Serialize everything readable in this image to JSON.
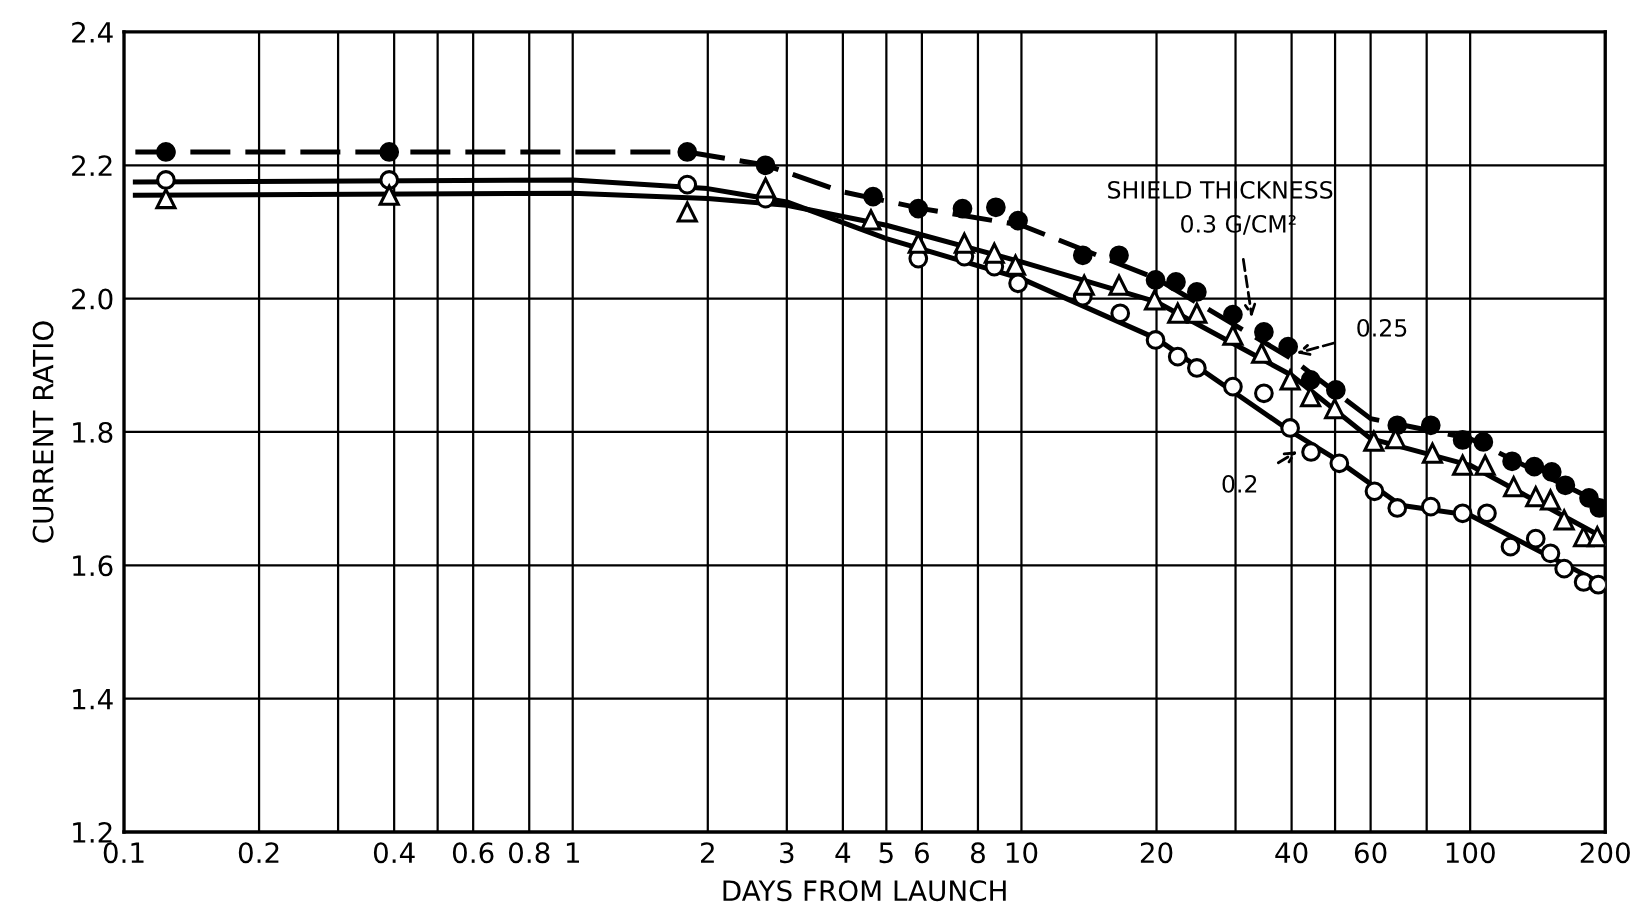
{
  "chart_data": {
    "type": "scatter",
    "xlabel": "DAYS FROM LAUNCH",
    "ylabel": "CURRENT RATIO",
    "log": "x",
    "grid": true,
    "legend": false,
    "xlim": [
      0.1,
      200
    ],
    "ylim": [
      1.2,
      2.4
    ],
    "xticks": [
      0.1,
      0.2,
      {
        "value": 0.3,
        "label": null
      },
      0.4,
      {
        "value": 0.5,
        "label": null
      },
      0.6,
      0.8,
      1,
      2,
      3,
      4,
      5,
      6,
      8,
      10,
      20,
      {
        "value": 30,
        "label": null
      },
      40,
      {
        "value": 50,
        "label": null
      },
      60,
      {
        "value": 80,
        "label": null
      },
      100,
      200
    ],
    "yticks": [
      1.2,
      1.4,
      1.6,
      1.8,
      {
        "value": 2.0,
        "label": "2.0"
      },
      2.2,
      2.4
    ],
    "series": [
      {
        "color": "#000000",
        "marker": "circle",
        "x": [
          0.124,
          0.39,
          1.8,
          2.69,
          4.67,
          5.89,
          7.39,
          8.77,
          9.83,
          13.7,
          16.5,
          19.9,
          22.1,
          24.6,
          29.6,
          34.7,
          39.3,
          44.1,
          50.2,
          68.8,
          81.7,
          96.2,
          107,
          124,
          139,
          152,
          163,
          184,
          194
        ],
        "values": [
          2.22,
          2.22,
          2.22,
          2.2,
          2.153,
          2.135,
          2.135,
          2.137,
          2.117,
          2.065,
          2.065,
          2.028,
          2.025,
          2.01,
          1.976,
          1.95,
          1.928,
          1.878,
          1.863,
          1.81,
          1.81,
          1.788,
          1.785,
          1.756,
          1.748,
          1.74,
          1.72,
          1.701,
          1.686
        ]
      },
      {
        "color": "#000000",
        "marker": "triangle",
        "x": [
          0.124,
          0.39,
          1.8,
          2.69,
          4.62,
          5.89,
          7.46,
          8.7,
          9.7,
          13.8,
          16.5,
          19.8,
          22.3,
          24.6,
          29.6,
          34.3,
          39.7,
          44.1,
          49.9,
          61.0,
          68.2,
          82.4,
          96.2,
          108,
          125,
          140,
          151,
          162,
          179,
          192
        ],
        "values": [
          2.15,
          2.155,
          2.13,
          2.166,
          2.118,
          2.083,
          2.083,
          2.068,
          2.05,
          2.02,
          2.02,
          1.998,
          1.978,
          1.978,
          1.945,
          1.918,
          1.878,
          1.853,
          1.835,
          1.786,
          1.79,
          1.768,
          1.75,
          1.75,
          1.718,
          1.703,
          1.698,
          1.668,
          1.643,
          1.643
        ]
      },
      {
        "color": "#000000",
        "marker": "circle",
        "x": [
          0.124,
          0.39,
          1.8,
          2.69,
          5.89,
          7.46,
          8.7,
          9.83,
          13.7,
          16.6,
          19.9,
          22.3,
          24.6,
          29.6,
          34.7,
          39.7,
          44.2,
          51.1,
          61.2,
          68.8,
          81.7,
          96.2,
          109,
          123,
          140,
          151,
          162,
          179,
          193
        ],
        "values": [
          2.178,
          2.178,
          2.171,
          2.15,
          2.06,
          2.063,
          2.048,
          2.023,
          2.003,
          1.978,
          1.938,
          1.913,
          1.896,
          1.868,
          1.858,
          1.806,
          1.77,
          1.753,
          1.711,
          1.686,
          1.688,
          1.678,
          1.678,
          1.628,
          1.64,
          1.618,
          1.595,
          1.575,
          1.571
        ]
      },
      {
        "type": "line",
        "color": "#000000",
        "marker": "none",
        "line_style": "dashed",
        "x": [
          0.106,
          1.8,
          2.7,
          4,
          6,
          10,
          20,
          40,
          60,
          100,
          200
        ],
        "values": [
          2.22,
          2.22,
          2.2,
          2.16,
          2.135,
          2.11,
          2.03,
          1.91,
          1.82,
          1.79,
          1.69
        ]
      },
      {
        "type": "line",
        "color": "#000000",
        "marker": "none",
        "line_style": "solid",
        "x": [
          0.106,
          1,
          2,
          3,
          5,
          10,
          20,
          40,
          60,
          100,
          200
        ],
        "values": [
          2.155,
          2.158,
          2.15,
          2.14,
          2.11,
          2.055,
          1.995,
          1.885,
          1.79,
          1.75,
          1.64
        ]
      },
      {
        "type": "line",
        "color": "#000000",
        "marker": "none",
        "line_style": "solid",
        "x": [
          0.106,
          1,
          2,
          3,
          5,
          10,
          20,
          40,
          50,
          70,
          100,
          200
        ],
        "values": [
          2.175,
          2.178,
          2.165,
          2.145,
          2.09,
          2.03,
          1.94,
          1.8,
          1.76,
          1.69,
          1.675,
          1.57
        ]
      }
    ],
    "annotations": [
      "SHIELD THICKNESS",
      {
        "text": "0.3 G/CM²",
        "x": 32.7,
        "y": 1.968
      },
      {
        "text": "0.25",
        "x": 40.5,
        "y": 1.917
      },
      {
        "text": "0.2",
        "x": 41.7,
        "y": 1.773
      }
    ]
  }
}
